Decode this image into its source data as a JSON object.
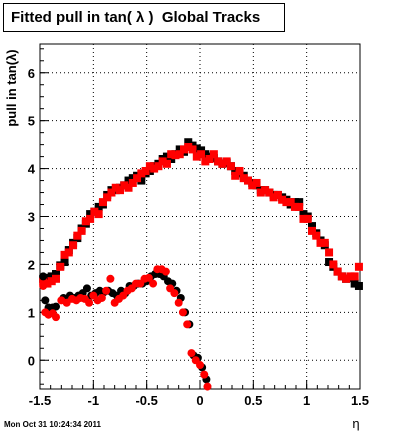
{
  "chart_data": {
    "type": "scatter",
    "title": "Fitted pull in tan( λ )  Global Tracks",
    "xlabel": "η",
    "ylabel": "pull in tan(λ)",
    "xlim": [
      -1.5,
      1.5
    ],
    "ylim": [
      -0.6,
      6.6
    ],
    "xticks": [
      "-1.5",
      "-1",
      "-0.5",
      "0",
      "0.5",
      "1",
      "1.5"
    ],
    "yticks": [
      "0",
      "1",
      "2",
      "3",
      "4",
      "5",
      "6"
    ],
    "grid": true,
    "series": [
      {
        "color": "#000000",
        "marker": "square",
        "points": [
          [
            -1.47,
            1.7
          ],
          [
            -1.43,
            1.72
          ],
          [
            -1.39,
            1.75
          ],
          [
            -1.35,
            1.8
          ],
          [
            -1.31,
            1.98
          ],
          [
            -1.27,
            2.05
          ],
          [
            -1.23,
            2.3
          ],
          [
            -1.19,
            2.45
          ],
          [
            -1.15,
            2.55
          ],
          [
            -1.11,
            2.75
          ],
          [
            -1.07,
            2.85
          ],
          [
            -1.03,
            3.05
          ],
          [
            -0.99,
            3.1
          ],
          [
            -0.95,
            3.2
          ],
          [
            -0.91,
            3.25
          ],
          [
            -0.87,
            3.45
          ],
          [
            -0.83,
            3.55
          ],
          [
            -0.79,
            3.55
          ],
          [
            -0.75,
            3.6
          ],
          [
            -0.71,
            3.65
          ],
          [
            -0.67,
            3.75
          ],
          [
            -0.63,
            3.8
          ],
          [
            -0.59,
            3.85
          ],
          [
            -0.55,
            3.75
          ],
          [
            -0.51,
            3.9
          ],
          [
            -0.47,
            3.95
          ],
          [
            -0.43,
            4.05
          ],
          [
            -0.39,
            4.1
          ],
          [
            -0.35,
            4.2
          ],
          [
            -0.31,
            4.25
          ],
          [
            -0.27,
            4.2
          ],
          [
            -0.23,
            4.3
          ],
          [
            -0.19,
            4.4
          ],
          [
            -0.15,
            4.35
          ],
          [
            -0.11,
            4.55
          ],
          [
            -0.07,
            4.48
          ],
          [
            -0.03,
            4.42
          ],
          [
            0.01,
            4.38
          ],
          [
            0.05,
            4.3
          ],
          [
            0.09,
            4.25
          ],
          [
            0.13,
            4.22
          ],
          [
            0.17,
            4.15
          ],
          [
            0.21,
            4.1
          ],
          [
            0.25,
            4.12
          ],
          [
            0.29,
            4.05
          ],
          [
            0.33,
            3.95
          ],
          [
            0.37,
            3.9
          ],
          [
            0.41,
            3.85
          ],
          [
            0.45,
            3.75
          ],
          [
            0.49,
            3.7
          ],
          [
            0.53,
            3.65
          ],
          [
            0.57,
            3.55
          ],
          [
            0.61,
            3.55
          ],
          [
            0.65,
            3.5
          ],
          [
            0.69,
            3.45
          ],
          [
            0.73,
            3.45
          ],
          [
            0.77,
            3.4
          ],
          [
            0.81,
            3.35
          ],
          [
            0.85,
            3.25
          ],
          [
            0.89,
            3.3
          ],
          [
            0.93,
            3.3
          ],
          [
            0.97,
            3.05
          ],
          [
            1.01,
            3.0
          ],
          [
            1.05,
            2.8
          ],
          [
            1.09,
            2.65
          ],
          [
            1.13,
            2.5
          ],
          [
            1.17,
            2.4
          ],
          [
            1.21,
            2.05
          ],
          [
            1.25,
            1.95
          ],
          [
            1.29,
            1.85
          ],
          [
            1.33,
            1.75
          ],
          [
            1.37,
            1.7
          ],
          [
            1.41,
            1.72
          ],
          [
            1.45,
            1.6
          ],
          [
            1.49,
            1.55
          ]
        ]
      },
      {
        "color": "#ff0000",
        "marker": "square",
        "points": [
          [
            -1.47,
            1.65
          ],
          [
            -1.43,
            1.6
          ],
          [
            -1.39,
            1.65
          ],
          [
            -1.35,
            1.7
          ],
          [
            -1.31,
            1.95
          ],
          [
            -1.27,
            2.2
          ],
          [
            -1.23,
            2.25
          ],
          [
            -1.19,
            2.4
          ],
          [
            -1.15,
            2.6
          ],
          [
            -1.11,
            2.7
          ],
          [
            -1.07,
            2.9
          ],
          [
            -1.03,
            2.95
          ],
          [
            -0.99,
            3.1
          ],
          [
            -0.95,
            3.05
          ],
          [
            -0.91,
            3.3
          ],
          [
            -0.87,
            3.4
          ],
          [
            -0.83,
            3.5
          ],
          [
            -0.79,
            3.6
          ],
          [
            -0.75,
            3.55
          ],
          [
            -0.71,
            3.65
          ],
          [
            -0.67,
            3.6
          ],
          [
            -0.63,
            3.7
          ],
          [
            -0.59,
            3.8
          ],
          [
            -0.55,
            3.9
          ],
          [
            -0.51,
            3.95
          ],
          [
            -0.47,
            4.05
          ],
          [
            -0.43,
            4.0
          ],
          [
            -0.39,
            4.05
          ],
          [
            -0.35,
            4.15
          ],
          [
            -0.31,
            4.1
          ],
          [
            -0.27,
            4.3
          ],
          [
            -0.23,
            4.28
          ],
          [
            -0.19,
            4.3
          ],
          [
            -0.15,
            4.4
          ],
          [
            -0.11,
            4.45
          ],
          [
            -0.07,
            4.4
          ],
          [
            -0.03,
            4.25
          ],
          [
            0.01,
            4.3
          ],
          [
            0.05,
            4.15
          ],
          [
            0.09,
            4.2
          ],
          [
            0.13,
            4.3
          ],
          [
            0.17,
            4.15
          ],
          [
            0.21,
            4.1
          ],
          [
            0.25,
            4.15
          ],
          [
            0.29,
            4.05
          ],
          [
            0.33,
            3.85
          ],
          [
            0.37,
            3.95
          ],
          [
            0.41,
            3.8
          ],
          [
            0.45,
            3.75
          ],
          [
            0.49,
            3.65
          ],
          [
            0.53,
            3.7
          ],
          [
            0.57,
            3.5
          ],
          [
            0.61,
            3.55
          ],
          [
            0.65,
            3.5
          ],
          [
            0.69,
            3.4
          ],
          [
            0.73,
            3.45
          ],
          [
            0.77,
            3.35
          ],
          [
            0.81,
            3.3
          ],
          [
            0.85,
            3.3
          ],
          [
            0.89,
            3.2
          ],
          [
            0.93,
            3.2
          ],
          [
            0.97,
            2.95
          ],
          [
            1.01,
            2.95
          ],
          [
            1.05,
            2.7
          ],
          [
            1.09,
            2.6
          ],
          [
            1.13,
            2.45
          ],
          [
            1.17,
            2.45
          ],
          [
            1.21,
            2.25
          ],
          [
            1.25,
            2.0
          ],
          [
            1.29,
            1.85
          ],
          [
            1.33,
            1.75
          ],
          [
            1.37,
            1.7
          ],
          [
            1.41,
            1.75
          ],
          [
            1.45,
            1.75
          ],
          [
            1.49,
            1.95
          ]
        ]
      },
      {
        "color": "#000000",
        "marker": "circle",
        "points": [
          [
            -1.47,
            1.75
          ],
          [
            -1.45,
            1.25
          ],
          [
            -1.42,
            1.1
          ],
          [
            -1.38,
            1.1
          ],
          [
            -1.35,
            1.12
          ],
          [
            -1.28,
            1.3
          ],
          [
            -1.22,
            1.35
          ],
          [
            -1.18,
            1.3
          ],
          [
            -1.14,
            1.35
          ],
          [
            -1.1,
            1.4
          ],
          [
            -1.06,
            1.5
          ],
          [
            -1.02,
            1.35
          ],
          [
            -0.98,
            1.4
          ],
          [
            -0.94,
            1.45
          ],
          [
            -0.9,
            1.42
          ],
          [
            -0.86,
            1.45
          ],
          [
            -0.82,
            1.4
          ],
          [
            -0.78,
            1.35
          ],
          [
            -0.74,
            1.45
          ],
          [
            -0.7,
            1.4
          ],
          [
            -0.66,
            1.55
          ],
          [
            -0.62,
            1.55
          ],
          [
            -0.58,
            1.6
          ],
          [
            -0.54,
            1.6
          ],
          [
            -0.5,
            1.65
          ],
          [
            -0.46,
            1.75
          ],
          [
            -0.42,
            1.8
          ],
          [
            -0.38,
            1.8
          ],
          [
            -0.34,
            1.75
          ],
          [
            -0.3,
            1.65
          ],
          [
            -0.26,
            1.6
          ],
          [
            -0.22,
            1.45
          ],
          [
            -0.18,
            1.3
          ],
          [
            -0.14,
            1.0
          ],
          [
            -0.1,
            0.75
          ],
          [
            -0.06,
            0.1
          ],
          [
            -0.02,
            0.05
          ],
          [
            0.02,
            -0.15
          ],
          [
            0.06,
            -0.4
          ]
        ]
      },
      {
        "color": "#ff0000",
        "marker": "circle",
        "points": [
          [
            -1.47,
            1.55
          ],
          [
            -1.45,
            1.0
          ],
          [
            -1.42,
            0.95
          ],
          [
            -1.38,
            0.98
          ],
          [
            -1.35,
            0.9
          ],
          [
            -1.3,
            1.25
          ],
          [
            -1.25,
            1.2
          ],
          [
            -1.2,
            1.28
          ],
          [
            -1.16,
            1.25
          ],
          [
            -1.12,
            1.3
          ],
          [
            -1.08,
            1.28
          ],
          [
            -1.04,
            1.2
          ],
          [
            -1.0,
            1.35
          ],
          [
            -0.96,
            1.25
          ],
          [
            -0.92,
            1.3
          ],
          [
            -0.88,
            1.45
          ],
          [
            -0.84,
            1.7
          ],
          [
            -0.8,
            1.2
          ],
          [
            -0.76,
            1.28
          ],
          [
            -0.72,
            1.35
          ],
          [
            -0.68,
            1.45
          ],
          [
            -0.64,
            1.5
          ],
          [
            -0.6,
            1.6
          ],
          [
            -0.56,
            1.6
          ],
          [
            -0.52,
            1.7
          ],
          [
            -0.48,
            1.72
          ],
          [
            -0.44,
            1.6
          ],
          [
            -0.4,
            1.9
          ],
          [
            -0.36,
            1.9
          ],
          [
            -0.32,
            1.85
          ],
          [
            -0.28,
            1.5
          ],
          [
            -0.24,
            1.4
          ],
          [
            -0.2,
            1.2
          ],
          [
            -0.16,
            1.0
          ],
          [
            -0.12,
            0.75
          ],
          [
            -0.08,
            0.15
          ],
          [
            -0.04,
            0.0
          ],
          [
            0.0,
            -0.1
          ],
          [
            0.04,
            -0.3
          ],
          [
            0.07,
            -0.55
          ]
        ]
      }
    ]
  },
  "timestamp": "Mon Oct 31 10:24:34 2011"
}
